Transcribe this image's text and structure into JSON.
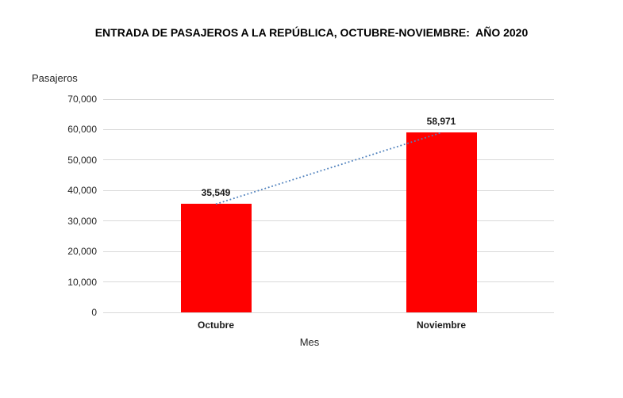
{
  "chart_data": {
    "type": "bar",
    "title": "ENTRADA DE PASAJEROS A LA REPÚBLICA, OCTUBRE-NOVIEMBRE:  AÑO 2020",
    "xlabel": "Mes",
    "ylabel": "Pasajeros",
    "categories": [
      "Octubre",
      "Noviembre"
    ],
    "values": [
      35549,
      58971
    ],
    "data_labels": [
      "35,549",
      "58,971"
    ],
    "ylim": [
      0,
      70000
    ],
    "ytick_step": 10000,
    "ytick_labels": [
      "0",
      "10,000",
      "20,000",
      "30,000",
      "40,000",
      "50,000",
      "60,000",
      "70,000"
    ],
    "grid": true,
    "legend_position": "none",
    "bar_color": "#ff0000",
    "gridline_color": "#d9d9d9",
    "trendline": {
      "style": "dotted",
      "color": "#4f81bd",
      "connects": "bar tops (Octubre to Noviembre)"
    }
  }
}
